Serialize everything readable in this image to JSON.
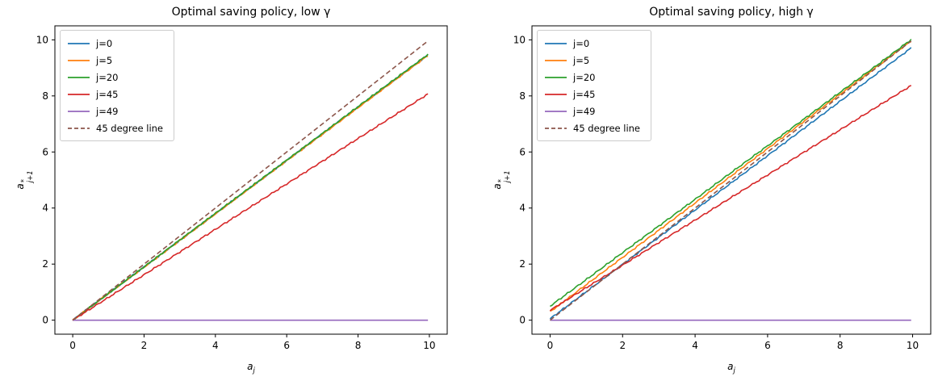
{
  "figure": {
    "background": "#ffffff",
    "spine_color": "#000000",
    "text_color": "#000000",
    "legend_border_color": "#cccccc"
  },
  "chart_data": [
    {
      "type": "line",
      "title": "Optimal saving policy, low γ",
      "xlabel": "a_j",
      "ylabel": "a*_(j+1)",
      "xlabel_parts": {
        "base": "a",
        "sub": "j"
      },
      "ylabel_parts": {
        "base": "a",
        "sup": "*",
        "sub": "j+1"
      },
      "xlim": [
        -0.5,
        10.5
      ],
      "ylim": [
        -0.5,
        10.5
      ],
      "xticks": [
        "0",
        "2",
        "4",
        "6",
        "8",
        "10"
      ],
      "yticks": [
        "0",
        "2",
        "4",
        "6",
        "8",
        "10"
      ],
      "xtick_values": [
        0,
        2,
        4,
        6,
        8,
        10
      ],
      "ytick_values": [
        0,
        2,
        4,
        6,
        8,
        10
      ],
      "grid": false,
      "legend_position": "upper left",
      "x": [
        0,
        1,
        2,
        3,
        4,
        5,
        6,
        7,
        8,
        9,
        10
      ],
      "series": [
        {
          "name": "j=0",
          "color": "#1f77b4",
          "style": "solid",
          "values": [
            0.0,
            0.95,
            1.9,
            2.85,
            3.8,
            4.75,
            5.7,
            6.65,
            7.6,
            8.55,
            9.5
          ]
        },
        {
          "name": "j=5",
          "color": "#ff7f0e",
          "style": "solid",
          "values": [
            0.0,
            0.95,
            1.89,
            2.84,
            3.79,
            4.74,
            5.69,
            6.63,
            7.58,
            8.53,
            9.48
          ]
        },
        {
          "name": "j=20",
          "color": "#2ca02c",
          "style": "solid",
          "values": [
            0.0,
            0.95,
            1.9,
            2.86,
            3.81,
            4.76,
            5.71,
            6.66,
            7.62,
            8.57,
            9.52
          ]
        },
        {
          "name": "j=45",
          "color": "#d62728",
          "style": "solid",
          "values": [
            0.0,
            0.81,
            1.62,
            2.43,
            3.24,
            4.05,
            4.86,
            5.67,
            6.48,
            7.29,
            8.1
          ]
        },
        {
          "name": "j=49",
          "color": "#9467bd",
          "style": "solid",
          "values": [
            0.0,
            0.0,
            0.0,
            0.0,
            0.0,
            0.0,
            0.0,
            0.0,
            0.0,
            0.0,
            0.0
          ]
        },
        {
          "name": "45 degree line",
          "color": "#8c564b",
          "style": "dashed",
          "values": [
            0,
            1,
            2,
            3,
            4,
            5,
            6,
            7,
            8,
            9,
            10
          ]
        }
      ]
    },
    {
      "type": "line",
      "title": "Optimal saving policy, high γ",
      "xlabel": "a_j",
      "ylabel": "a*_(j+1)",
      "xlabel_parts": {
        "base": "a",
        "sub": "j"
      },
      "ylabel_parts": {
        "base": "a",
        "sup": "*",
        "sub": "j+1"
      },
      "xlim": [
        -0.5,
        10.5
      ],
      "ylim": [
        -0.5,
        10.5
      ],
      "xticks": [
        "0",
        "2",
        "4",
        "6",
        "8",
        "10"
      ],
      "yticks": [
        "0",
        "2",
        "4",
        "6",
        "8",
        "10"
      ],
      "xtick_values": [
        0,
        2,
        4,
        6,
        8,
        10
      ],
      "ytick_values": [
        0,
        2,
        4,
        6,
        8,
        10
      ],
      "grid": false,
      "legend_position": "upper left",
      "x": [
        0,
        1,
        2,
        3,
        4,
        5,
        6,
        7,
        8,
        9,
        10
      ],
      "series": [
        {
          "name": "j=0",
          "color": "#1f77b4",
          "style": "solid",
          "values": [
            0.05,
            1.02,
            1.99,
            2.96,
            3.93,
            4.9,
            5.87,
            6.84,
            7.81,
            8.78,
            9.75
          ]
        },
        {
          "name": "j=5",
          "color": "#ff7f0e",
          "style": "solid",
          "values": [
            0.3,
            1.27,
            2.24,
            3.21,
            4.18,
            5.15,
            6.12,
            7.09,
            8.06,
            9.03,
            10.0
          ]
        },
        {
          "name": "j=20",
          "color": "#2ca02c",
          "style": "solid",
          "values": [
            0.5,
            1.45,
            2.41,
            3.36,
            4.31,
            5.27,
            6.22,
            7.17,
            8.13,
            9.08,
            10.05
          ]
        },
        {
          "name": "j=45",
          "color": "#d62728",
          "style": "solid",
          "values": [
            0.35,
            1.16,
            1.96,
            2.77,
            3.57,
            4.38,
            5.18,
            5.99,
            6.79,
            7.6,
            8.4
          ]
        },
        {
          "name": "j=49",
          "color": "#9467bd",
          "style": "solid",
          "values": [
            0.0,
            0.0,
            0.0,
            0.0,
            0.0,
            0.0,
            0.0,
            0.0,
            0.0,
            0.0,
            0.0
          ]
        },
        {
          "name": "45 degree line",
          "color": "#8c564b",
          "style": "dashed",
          "values": [
            0,
            1,
            2,
            3,
            4,
            5,
            6,
            7,
            8,
            9,
            10
          ]
        }
      ]
    }
  ]
}
